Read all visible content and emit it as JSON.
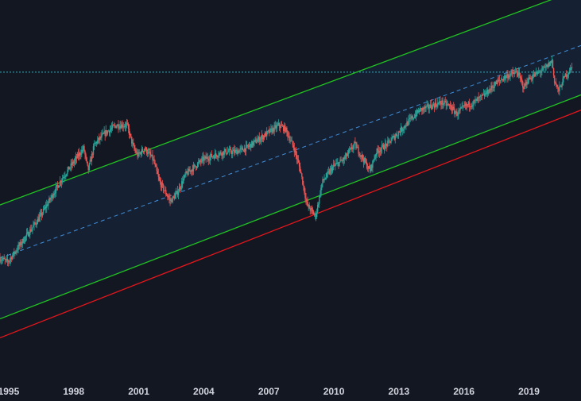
{
  "theme": {
    "background": "#131722",
    "channel_fill": "#162033",
    "up_color": "#26a69a",
    "down_color": "#ef5350",
    "upper_line_color": "#22c422",
    "lower_line_color": "#22c422",
    "support_line_color": "#e3161b",
    "median_line_color": "#3f8ed8",
    "price_line_color": "#2bb3c0",
    "axis_text_color": "#d1d4dc"
  },
  "chart_data": {
    "type": "candlestick",
    "title": "",
    "xlabel": "",
    "ylabel": "",
    "x_ticks": [
      "1995",
      "1998",
      "2001",
      "2004",
      "2007",
      "2010",
      "2013",
      "2016",
      "2019"
    ],
    "xlim": [
      1994.6,
      2021.4
    ],
    "ylim": [
      0,
      100
    ],
    "grid": false,
    "last_price_line": 81,
    "channel": {
      "upper": {
        "x": [
          1994.6,
          2021.4
        ],
        "y": [
          46,
          103
        ]
      },
      "median": {
        "x": [
          1994.6,
          2021.4
        ],
        "y": [
          32,
          88
        ]
      },
      "lower": {
        "x": [
          1994.6,
          2021.4
        ],
        "y": [
          16,
          75
        ]
      },
      "support": {
        "x": [
          1994.6,
          2021.4
        ],
        "y": [
          11,
          71
        ]
      }
    },
    "close_path": {
      "x": [
        1994.6,
        1995.0,
        1995.5,
        1996.0,
        1996.5,
        1997.0,
        1997.5,
        1998.0,
        1998.5,
        1998.7,
        1999.0,
        1999.5,
        2000.0,
        2000.5,
        2000.8,
        2001.0,
        2001.3,
        2001.7,
        2002.0,
        2002.5,
        2002.8,
        2003.2,
        2003.6,
        2004.0,
        2004.5,
        2005.0,
        2005.5,
        2006.0,
        2006.5,
        2007.0,
        2007.5,
        2007.8,
        2008.2,
        2008.5,
        2008.8,
        2009.2,
        2009.5,
        2010.0,
        2010.5,
        2011.0,
        2011.4,
        2011.7,
        2012.0,
        2012.5,
        2013.0,
        2013.5,
        2014.0,
        2014.5,
        2015.0,
        2015.4,
        2015.7,
        2016.1,
        2016.5,
        2017.0,
        2017.5,
        2018.0,
        2018.5,
        2018.8,
        2019.0,
        2019.5,
        2019.8,
        2020.1,
        2020.2,
        2020.4,
        2020.7,
        2021.0
      ],
      "y": [
        32,
        31,
        35,
        39,
        43,
        48,
        53,
        57,
        61,
        55,
        62,
        65,
        67,
        67,
        61,
        59,
        61,
        58,
        52,
        47,
        49,
        54,
        56,
        58,
        59,
        60,
        60,
        61,
        63,
        65,
        67,
        66,
        61,
        55,
        46,
        43,
        52,
        56,
        58,
        62,
        58,
        55,
        60,
        62,
        65,
        68,
        71,
        72,
        73,
        72,
        70,
        72,
        73,
        75,
        78,
        80,
        81,
        77,
        79,
        81,
        82,
        84,
        79,
        76,
        80,
        82
      ]
    }
  }
}
